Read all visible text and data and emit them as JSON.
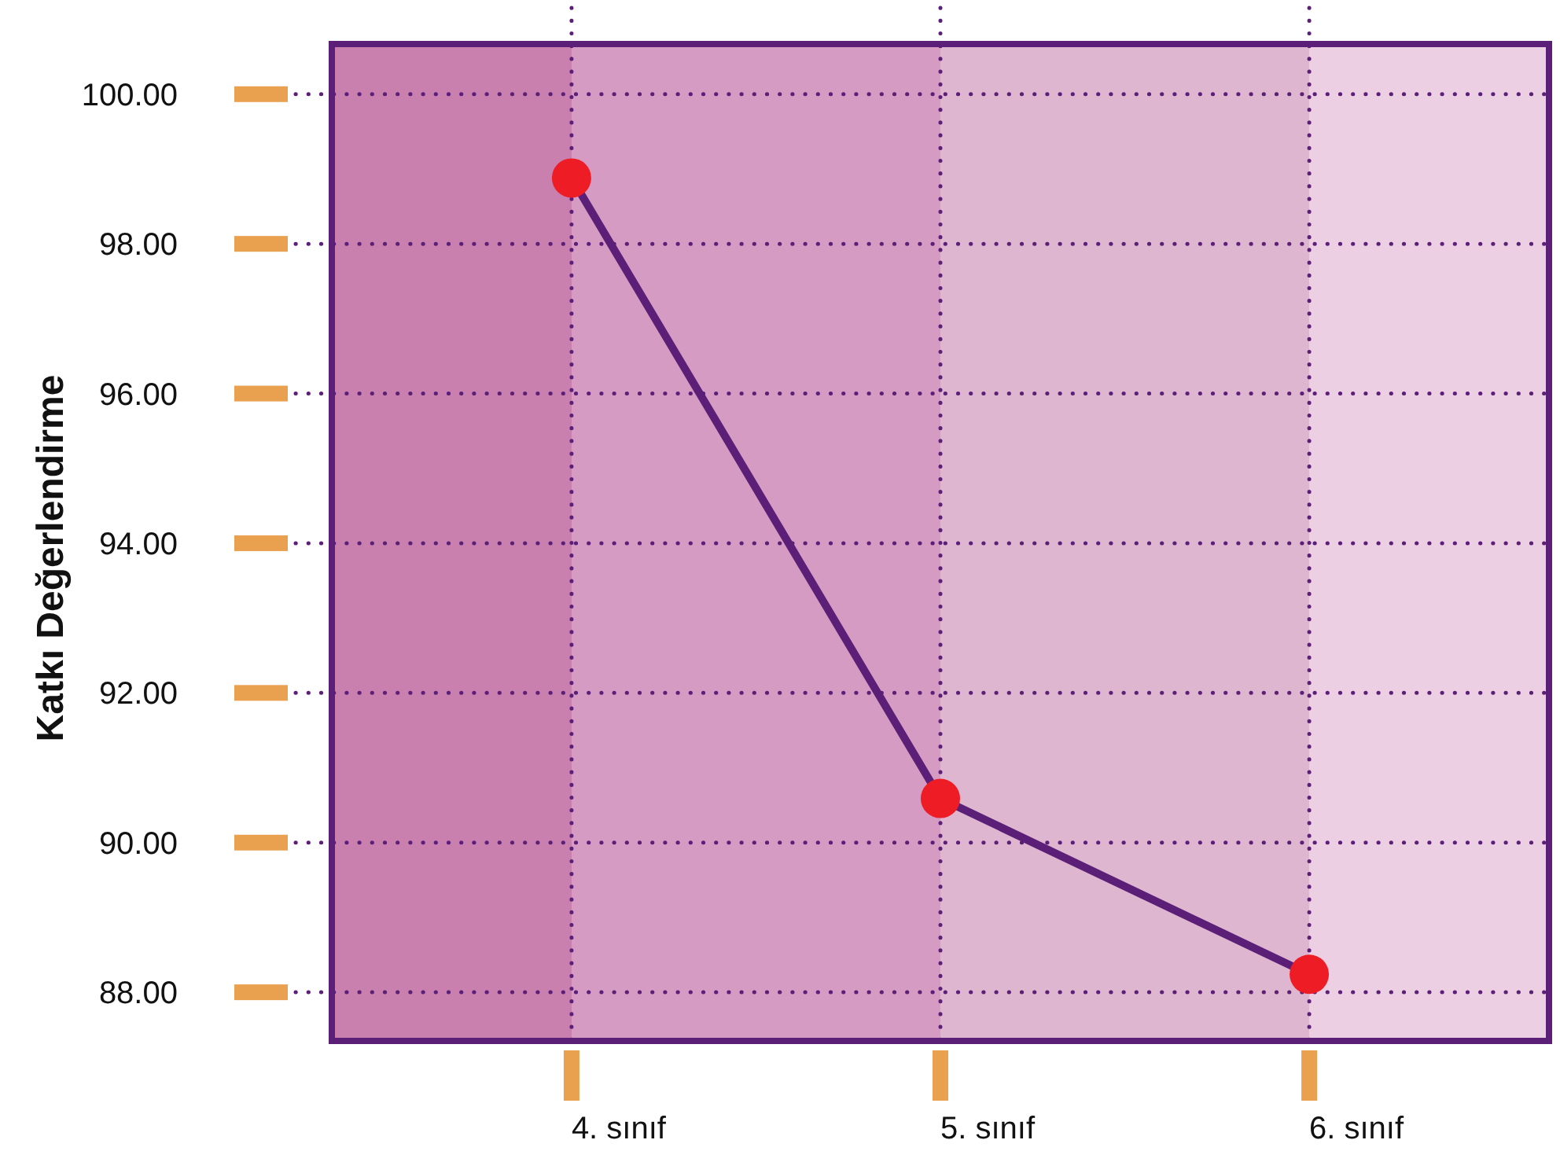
{
  "chart_data": {
    "type": "line",
    "ylabel": "Katkı Değerlendirme",
    "categories": [
      "4. sınıf",
      "5. sınıf",
      "6. sınıf"
    ],
    "series": [
      {
        "color": "#5b1f78",
        "values": [
          98.88,
          90.59,
          88.24
        ]
      }
    ],
    "ylim": [
      87.35,
      100.67
    ],
    "yticks": [
      {
        "value": 88,
        "label": "88.00"
      },
      {
        "value": 90,
        "label": "90.00"
      },
      {
        "value": 92,
        "label": "92.00"
      },
      {
        "value": 94,
        "label": "94.00"
      },
      {
        "value": 96,
        "label": "96.00"
      },
      {
        "value": 98,
        "label": "98.00"
      },
      {
        "value": 100,
        "label": "100.00"
      }
    ],
    "grid": true,
    "marker": "circle",
    "line_style": "solid"
  }
}
